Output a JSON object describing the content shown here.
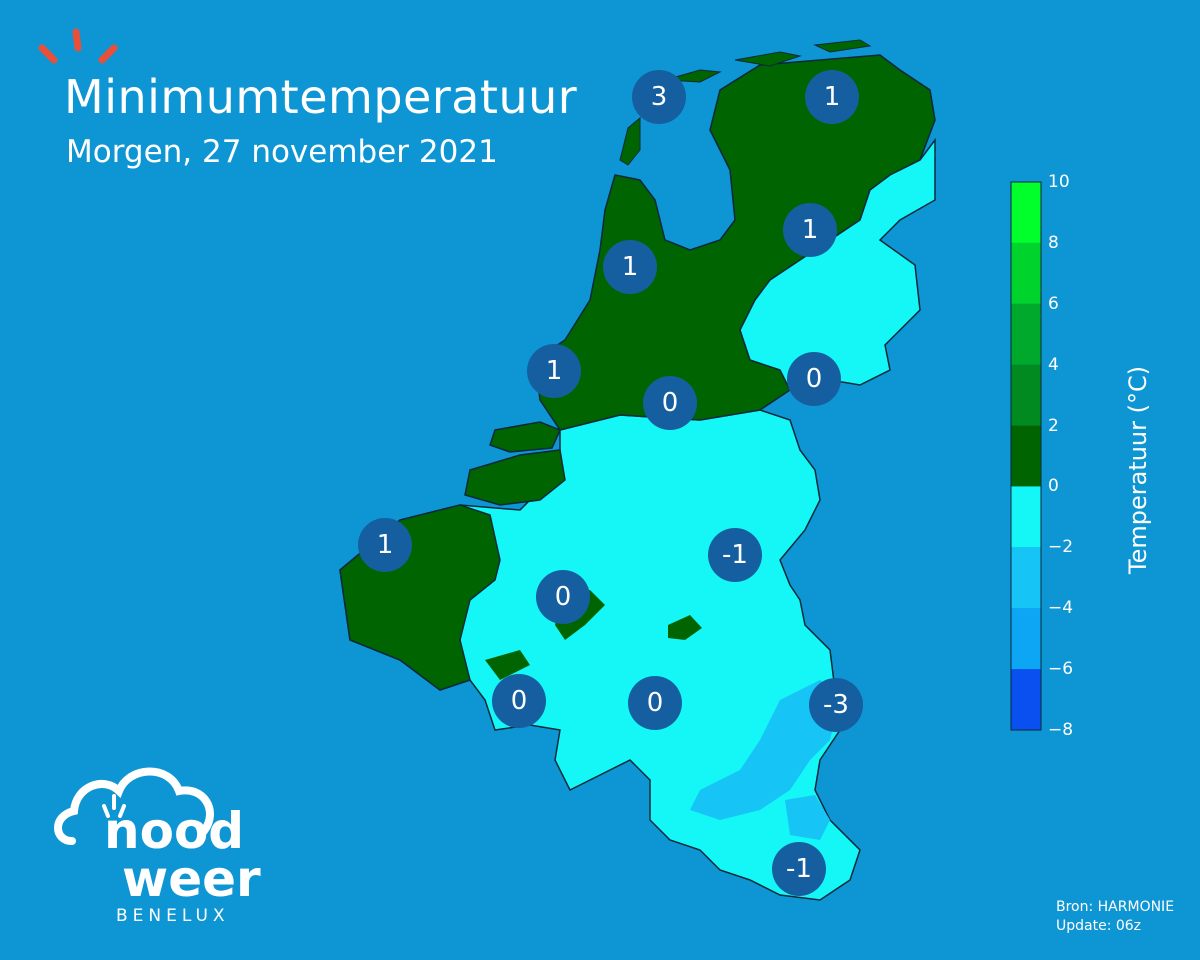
{
  "header": {
    "title": "Minimumtemperatuur",
    "subtitle": "Morgen, 27 november 2021"
  },
  "colors": {
    "background": "#0e96d4",
    "marker": "#155fa0",
    "band_0_2": "#006400",
    "band_minus2_0": "#15f7f7",
    "band_minus4_minus2": "#16c4f5",
    "accent_sun": "#e8503a"
  },
  "legend": {
    "title": "Temperatuur (°C)",
    "ticks": [
      "10",
      "8",
      "6",
      "4",
      "2",
      "0",
      "−2",
      "−4",
      "−6",
      "−8"
    ],
    "range": [
      -8,
      10
    ],
    "bands": [
      {
        "from": 8,
        "to": 10,
        "color": "#00ff2b"
      },
      {
        "from": 6,
        "to": 8,
        "color": "#00d32b"
      },
      {
        "from": 4,
        "to": 6,
        "color": "#00a82b"
      },
      {
        "from": 2,
        "to": 4,
        "color": "#008a1f"
      },
      {
        "from": 0,
        "to": 2,
        "color": "#006400"
      },
      {
        "from": -2,
        "to": 0,
        "color": "#15f7f7"
      },
      {
        "from": -4,
        "to": -2,
        "color": "#16c4f5"
      },
      {
        "from": -6,
        "to": -4,
        "color": "#0da6f4"
      },
      {
        "from": -8,
        "to": -6,
        "color": "#0a4ff0"
      }
    ]
  },
  "markers": [
    {
      "value": "3"
    },
    {
      "value": "1"
    },
    {
      "value": "1"
    },
    {
      "value": "1"
    },
    {
      "value": "1"
    },
    {
      "value": "0"
    },
    {
      "value": "0"
    },
    {
      "value": "1"
    },
    {
      "value": "-1"
    },
    {
      "value": "0"
    },
    {
      "value": "0"
    },
    {
      "value": "0"
    },
    {
      "value": "-3"
    },
    {
      "value": "-1"
    }
  ],
  "source": {
    "line1": "Bron: HARMONIE",
    "line2": "Update: 06z"
  },
  "logo": {
    "word1": "nood",
    "word2": "weer",
    "sub": "BENELUX"
  },
  "icons": [
    "sun-rays-icon",
    "cloud-logo-icon"
  ]
}
